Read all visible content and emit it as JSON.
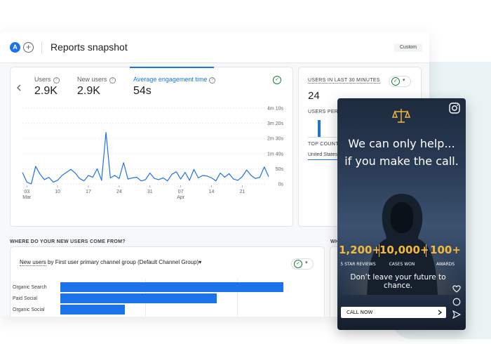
{
  "header": {
    "avatar_letter": "A",
    "add_symbol": "+",
    "title": "Reports snapshot",
    "custom_label": "Custom"
  },
  "metrics": [
    {
      "label": "Users",
      "value": "2.9K"
    },
    {
      "label": "New users",
      "value": "2.9K"
    },
    {
      "label": "Average engagement time",
      "value": "54s"
    }
  ],
  "chart_data": {
    "type": "line",
    "x_ticks": [
      "03",
      "10",
      "17",
      "24",
      "31",
      "07",
      "14",
      "21"
    ],
    "x_month_labels": [
      "Mar",
      "Apr"
    ],
    "y_ticks": [
      "4m 10s",
      "3m 20s",
      "2m 30s",
      "1m 40s",
      "50s",
      "0s"
    ],
    "ylim_seconds": [
      0,
      250
    ],
    "series": [
      {
        "values": [
          38,
          6,
          0,
          58,
          32,
          14,
          22,
          6,
          12,
          28,
          38,
          48,
          36,
          18,
          10,
          28,
          22,
          50,
          12,
          170,
          20,
          28,
          18,
          70,
          16,
          20,
          22,
          10,
          14,
          36,
          18,
          14,
          20,
          10,
          32,
          40,
          16,
          38,
          12,
          48,
          20,
          28,
          26,
          20,
          10,
          36,
          22,
          34,
          16,
          12,
          24,
          46,
          28,
          18,
          22,
          56,
          24
        ]
      }
    ]
  },
  "realtime": {
    "title": "USERS IN LAST 30 MINUTES",
    "value": "24",
    "per_minute_label": "USERS PER M",
    "top_label": "TOP COUNT",
    "top_item": "United States"
  },
  "acquisition": {
    "title": "WHERE DO YOUR NEW USERS COME FROM?",
    "dropdown_prefix": "New users",
    "dropdown_rest": " by First user primary channel group (Default Channel Group)",
    "dropdown_arrow": "▾",
    "caret": "▾",
    "partial_title": "WH",
    "bars": [
      {
        "label": "Organic Search",
        "value": 100
      },
      {
        "label": "Paid Social",
        "value": 70
      },
      {
        "label": "Organic Social",
        "value": 29
      }
    ]
  },
  "ad": {
    "headline_1": "We can only help...",
    "headline_2": "if you make the call.",
    "stats": [
      {
        "value": "1,200+",
        "label": "5 STAR REVIEWS"
      },
      {
        "value": "10,000+",
        "label": "CASES WON"
      },
      {
        "value": "100+",
        "label": "AWARDS"
      }
    ],
    "tagline": "Don’t leave your future to chance.",
    "cta": "CALL NOW",
    "gold": "#f6b93b"
  },
  "icons": [
    "chevron-left-icon",
    "help-icon",
    "check-circle-icon",
    "scales-icon",
    "instagram-icon",
    "heart-icon",
    "comment-icon",
    "send-icon",
    "chevron-right-icon"
  ]
}
